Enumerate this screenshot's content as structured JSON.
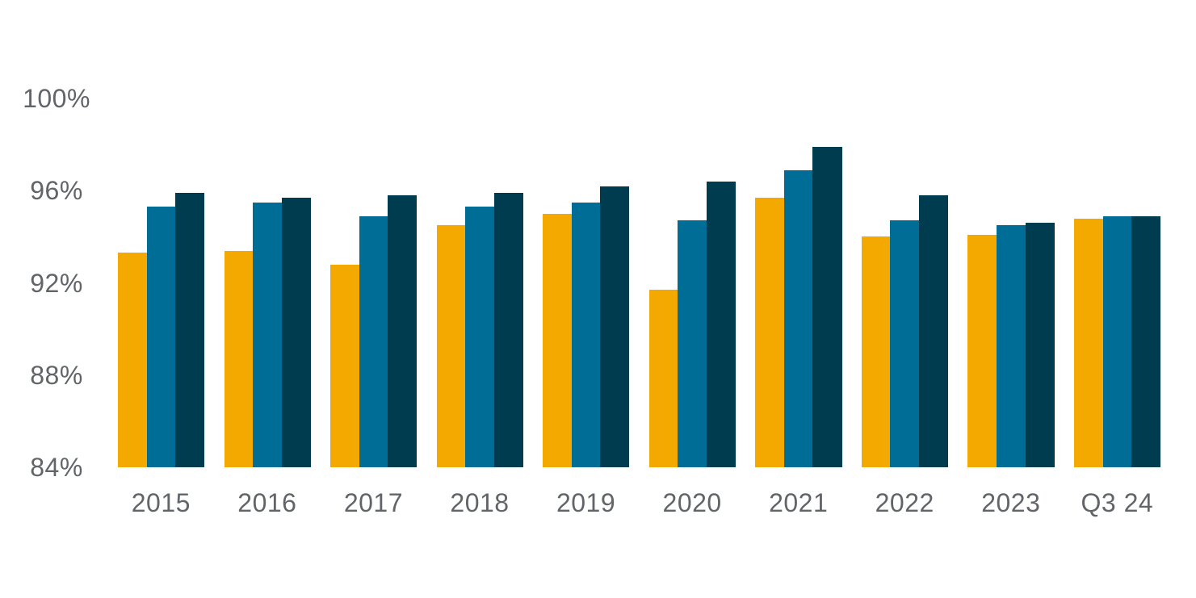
{
  "chart_data": {
    "type": "bar",
    "title": "",
    "xlabel": "",
    "ylabel": "",
    "ylim": [
      84,
      100
    ],
    "grid": false,
    "legend": false,
    "background_color": "#FFFFFF",
    "axis_text_color": "#616469",
    "categories": [
      "2015",
      "2016",
      "2017",
      "2018",
      "2019",
      "2020",
      "2021",
      "2022",
      "2023",
      "Q3 24"
    ],
    "y_ticks": [
      {
        "label": "100%",
        "value": 100
      },
      {
        "label": "96%",
        "value": 96
      },
      {
        "label": "92%",
        "value": 92
      },
      {
        "label": "88%",
        "value": 88
      },
      {
        "label": "84%",
        "value": 84
      }
    ],
    "series": [
      {
        "name": "orange-series",
        "color": "#F3A900",
        "values": [
          93.3,
          93.4,
          92.8,
          94.5,
          95.0,
          91.7,
          95.7,
          94.0,
          94.1,
          94.8
        ]
      },
      {
        "name": "teal-blue-series",
        "color": "#006D96",
        "values": [
          95.3,
          95.5,
          94.9,
          95.3,
          95.5,
          94.7,
          96.9,
          94.7,
          94.5,
          94.9
        ]
      },
      {
        "name": "dark-navy-series",
        "color": "#003C50",
        "values": [
          95.9,
          95.7,
          95.8,
          95.9,
          96.2,
          96.4,
          97.9,
          95.8,
          94.6,
          94.9
        ]
      }
    ]
  }
}
